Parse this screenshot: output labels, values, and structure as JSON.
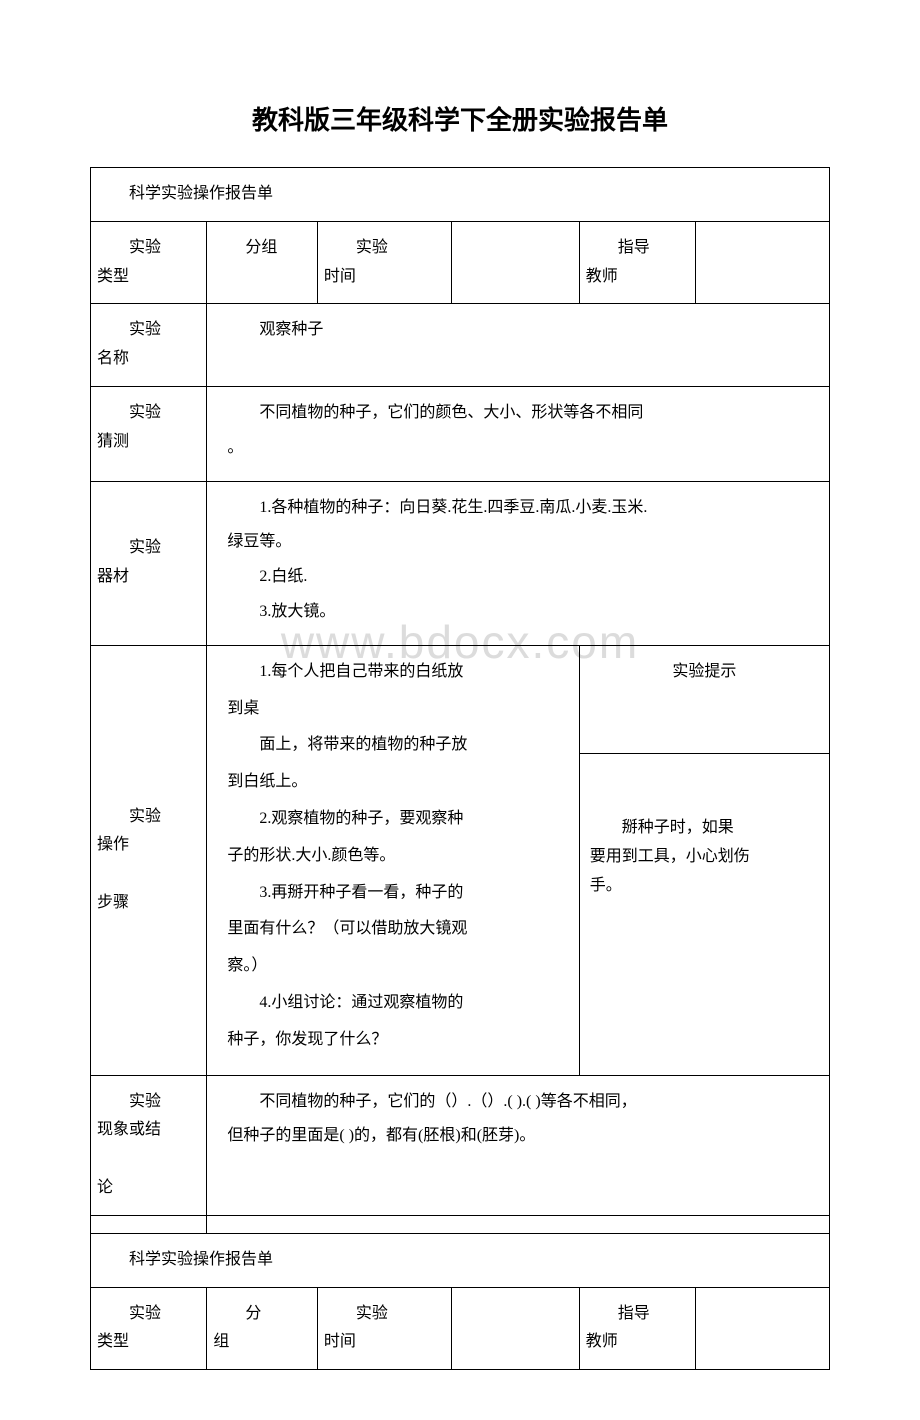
{
  "watermark": "www.bdocx.com",
  "page_title": "教科版三年级科学下全册实验报告单",
  "labels": {
    "report_header": "科学实验操作报告单",
    "exp_type": "实验类型",
    "exp_type_l1": "实验",
    "exp_type_l2": "类型",
    "exp_time": "实验时间",
    "exp_time_l1": "实验",
    "exp_time_l2": "时间",
    "teacher": "指导教师",
    "teacher_l1": "指导",
    "teacher_l2": "教师",
    "exp_name": "实验名称",
    "exp_name_l1": "实验",
    "exp_name_l2": "名称",
    "guess": "实验猜测",
    "guess_l1": "实验",
    "guess_l2": "猜测",
    "equipment": "实验器材",
    "equipment_l1": "实验",
    "equipment_l2": "器材",
    "steps": "实验操作步骤",
    "steps_l1": "实验",
    "steps_l2": "操作",
    "steps_l3": "步骤",
    "conclusion": "实验现象或结论",
    "conclusion_l1": "实验",
    "conclusion_l2": "现象或结",
    "conclusion_l3": "论",
    "hint": "实验提示"
  },
  "report1": {
    "type_value": "分组",
    "name_value": "观察种子",
    "guess_value": "不同植物的种子，它们的颜色、大小、形状等各不相同。",
    "guess_value_l1": "不同植物的种子，它们的颜色、大小、形状等各不相同",
    "guess_value_l2": "。",
    "equipment": {
      "line1": "1.各种植物的种子：向日葵.花生.四季豆.南瓜.小麦.玉米.",
      "line1_cont": "绿豆等。",
      "line2": "2.白纸.",
      "line3": "3.放大镜。"
    },
    "steps": {
      "s1_l1": "1.每个人把自己带来的白纸放",
      "s1_l2": "到桌",
      "s1_l3": "面上，将带来的植物的种子放",
      "s1_l4": "到白纸上。",
      "s2_l1": "2.观察植物的种子，要观察种",
      "s2_l2": "子的形状.大小.颜色等。",
      "s3_l1": "3.再掰开种子看一看，种子的",
      "s3_l2": "里面有什么？（可以借助放大镜观",
      "s3_l3": "察。）",
      "s4_l1": "4.小组讨论：通过观察植物的",
      "s4_l2": "种子，你发现了什么？"
    },
    "hint_body_l1": "掰种子时，如果",
    "hint_body_l2": "要用到工具，小心划伤",
    "hint_body_l3": "手。",
    "conclusion_l1": "不同植物的种子，它们的（）.（）.( ).( )等各不相同，",
    "conclusion_l2": "但种子的里面是( )的，都有(胚根)和(胚芽)。"
  },
  "report2": {
    "type_value": "分组",
    "type_value_l1": "分",
    "type_value_l2": "组"
  },
  "colors": {
    "text": "#000000",
    "border": "#000000",
    "background": "#ffffff",
    "watermark": "#dcdcdc"
  }
}
